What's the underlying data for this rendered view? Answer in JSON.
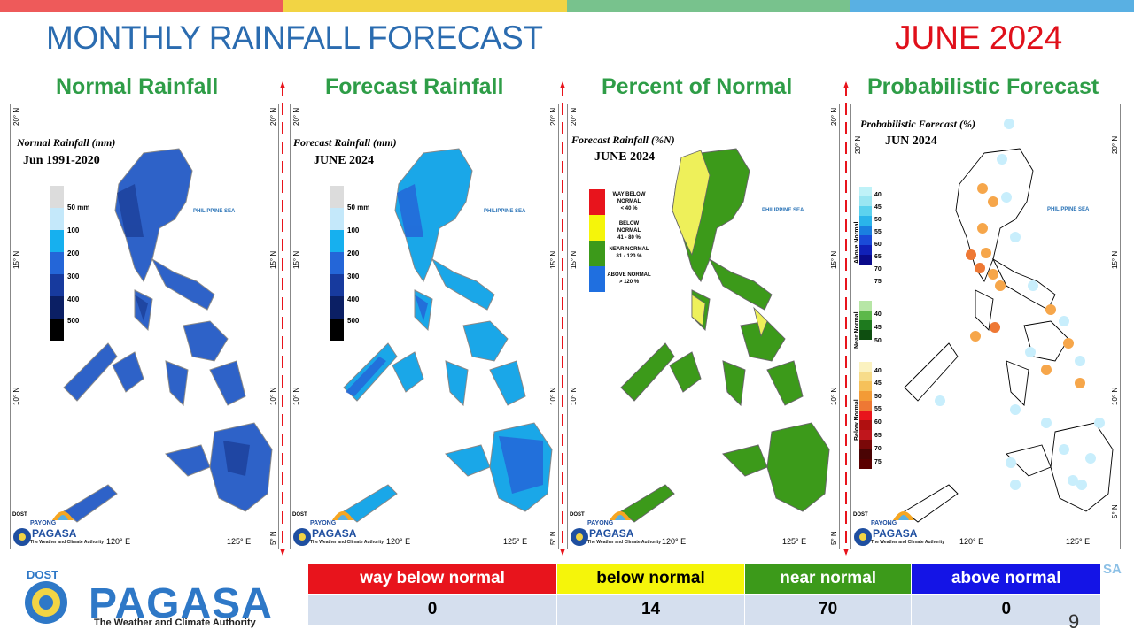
{
  "header": {
    "title": "MONTHLY RAINFALL FORECAST",
    "month": "JUNE 2024",
    "bar_colors": [
      "#ee5a5a",
      "#f2d444",
      "#78c28d",
      "#59b0e3"
    ]
  },
  "panels": {
    "normal": {
      "heading": "Normal Rainfall",
      "legend_title": "Normal Rainfall (mm)",
      "legend_sub": "Jun 1991-2020",
      "scale": [
        "50 mm",
        "100",
        "200",
        "300",
        "400",
        "500"
      ]
    },
    "forecast": {
      "heading": "Forecast Rainfall",
      "legend_title": "Forecast Rainfall (mm)",
      "legend_sub": "JUNE 2024",
      "scale": [
        "50 mm",
        "100",
        "200",
        "300",
        "400",
        "500"
      ]
    },
    "percent": {
      "heading": "Percent of Normal",
      "legend_title": "Forecast Rainfall (%N)",
      "legend_sub": "JUNE 2024",
      "categories": [
        {
          "label": "WAY BELOW NORMAL",
          "range": "< 40 %",
          "color": "#e8141c"
        },
        {
          "label": "BELOW NORMAL",
          "range": "41 - 80 %",
          "color": "#f5f50a"
        },
        {
          "label": "NEAR NORMAL",
          "range": "81 - 120 %",
          "color": "#3c9a1a"
        },
        {
          "label": "ABOVE NORMAL",
          "range": "> 120 %",
          "color": "#1f6fe0"
        }
      ]
    },
    "prob": {
      "heading": "Probabilistic Forecast",
      "legend_title": "Probabilistic Forecast (%)",
      "legend_sub": "JUN 2024",
      "above_label": "Above Normal",
      "near_label": "Near Normal",
      "below_label": "Below Normal",
      "above_values": [
        "40",
        "45",
        "50",
        "55",
        "60",
        "65",
        "70",
        "75"
      ],
      "near_values": [
        "40",
        "45",
        "50"
      ],
      "below_values": [
        "40",
        "45",
        "50",
        "55",
        "60",
        "65",
        "70",
        "75"
      ]
    }
  },
  "map_labels": {
    "sea": "PHILIPPINE SEA",
    "lat_20": "20° N",
    "lat_15": "15° N",
    "lat_10": "10° N",
    "lat_5": "5° N",
    "lon_120": "120° E",
    "lon_125": "125° E",
    "dost": "DOST",
    "payong": "PAYONG",
    "pagasa": "PAGASA",
    "authority": "The Weather and Climate Authority"
  },
  "summary": {
    "headers": [
      "way below normal",
      "below normal",
      "near normal",
      "above normal"
    ],
    "header_colors": [
      "#e8141c",
      "#f5f50a",
      "#3c9a1a",
      "#1414e6"
    ],
    "header_text_colors": [
      "#ffffff",
      "#000000",
      "#ffffff",
      "#ffffff"
    ],
    "values": [
      "0",
      "14",
      "70",
      "0"
    ]
  },
  "footer": {
    "dost": "DOST",
    "name": "PAGASA",
    "tagline": "The Weather and Climate Authority",
    "ghost": "SA",
    "page": "9"
  }
}
